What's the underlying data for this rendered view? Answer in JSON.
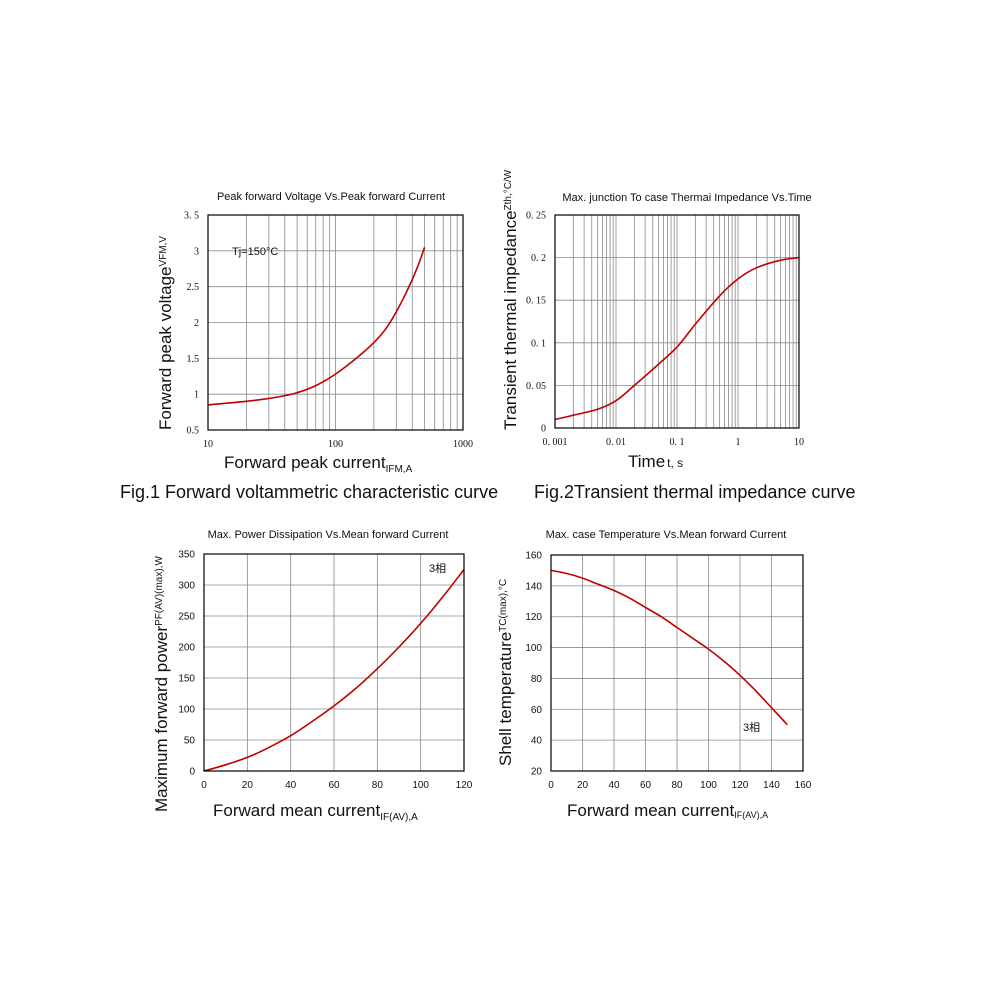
{
  "captions": {
    "fig1": "Fig.1 Forward voltammetric characteristic curve",
    "fig2": "Fig.2Transient thermal impedance curve"
  },
  "chart_data": [
    {
      "id": "c1",
      "type": "line",
      "title": "Peak forward Voltage Vs.Peak forward Current",
      "xlabel": "Forward peak current",
      "xlabel_sub": "IFM,A",
      "ylabel": "Forward peak voltage",
      "ylabel_sub": "VFM,V",
      "xscale": "log",
      "xlim": [
        10,
        1000
      ],
      "ylim": [
        0.5,
        3.5
      ],
      "xticks": [
        10,
        100,
        1000
      ],
      "xtick_labels": [
        "10",
        "100",
        "1000"
      ],
      "yticks": [
        0.5,
        1,
        1.5,
        2,
        2.5,
        3,
        3.5
      ],
      "ytick_labels": [
        "0.5",
        "1",
        "1.5",
        "2",
        "2.5",
        "3",
        "3. 5"
      ],
      "annotation": "Tj=150°C",
      "grid": true,
      "series": [
        {
          "x": [
            10,
            20,
            30,
            40,
            50,
            70,
            100,
            150,
            200,
            250,
            300,
            350,
            400,
            450,
            500
          ],
          "y": [
            0.85,
            0.9,
            0.94,
            0.98,
            1.02,
            1.12,
            1.28,
            1.52,
            1.72,
            1.92,
            2.15,
            2.38,
            2.6,
            2.82,
            3.05
          ]
        }
      ]
    },
    {
      "id": "c2",
      "type": "line",
      "title": "Max. junction To case Thermai Impedance Vs.Time",
      "xlabel": "Time",
      "xlabel_sub": "t, s",
      "ylabel": "Transient thermal impedance",
      "ylabel_sub": "Zth,°C/W",
      "xscale": "log",
      "xlim": [
        0.001,
        10
      ],
      "ylim": [
        0,
        0.25
      ],
      "xticks": [
        0.001,
        0.01,
        0.1,
        1,
        10
      ],
      "xtick_labels": [
        "0. 001",
        "0. 01",
        "0. 1",
        "1",
        "10"
      ],
      "yticks": [
        0,
        0.05,
        0.1,
        0.15,
        0.2,
        0.25
      ],
      "ytick_labels": [
        "0",
        "0. 05",
        "0. 1",
        "0. 15",
        "0. 2",
        "0. 25"
      ],
      "grid": true,
      "series": [
        {
          "x": [
            0.001,
            0.002,
            0.005,
            0.01,
            0.02,
            0.05,
            0.1,
            0.2,
            0.5,
            1,
            2,
            5,
            10
          ],
          "y": [
            0.01,
            0.015,
            0.022,
            0.032,
            0.05,
            0.075,
            0.095,
            0.122,
            0.155,
            0.175,
            0.188,
            0.197,
            0.2
          ]
        }
      ]
    },
    {
      "id": "c3",
      "type": "line",
      "title": "Max. Power Dissipation Vs.Mean forward Current",
      "xlabel": "Forward mean current",
      "xlabel_sub": "IF(AV),A",
      "ylabel": "Maximum forward power",
      "ylabel_sub": "PF(AV)(max),W",
      "xscale": "linear",
      "xlim": [
        0,
        120
      ],
      "ylim": [
        0,
        350
      ],
      "xticks": [
        0,
        20,
        40,
        60,
        80,
        100,
        120
      ],
      "xtick_labels": [
        "0",
        "20",
        "40",
        "60",
        "80",
        "100",
        "120"
      ],
      "yticks": [
        0,
        50,
        100,
        150,
        200,
        250,
        300,
        350
      ],
      "ytick_labels": [
        "0",
        "50",
        "100",
        "150",
        "200",
        "250",
        "300",
        "350"
      ],
      "annotation": "3相",
      "grid": true,
      "series": [
        {
          "x": [
            0,
            10,
            20,
            30,
            40,
            50,
            60,
            70,
            80,
            90,
            100,
            110,
            120
          ],
          "y": [
            0,
            10,
            22,
            38,
            57,
            80,
            105,
            133,
            165,
            200,
            238,
            280,
            325
          ]
        }
      ]
    },
    {
      "id": "c4",
      "type": "line",
      "title": "Max. case Temperature Vs.Mean forward Current",
      "xlabel": "Forward mean current",
      "xlabel_sub": "IF(AV),A",
      "ylabel": "Shell temperature",
      "ylabel_sub": "TC(max),°C",
      "xscale": "linear",
      "xlim": [
        0,
        160
      ],
      "ylim": [
        20,
        160
      ],
      "xticks": [
        0,
        20,
        40,
        60,
        80,
        100,
        120,
        140,
        160
      ],
      "xtick_labels": [
        "0",
        "20",
        "40",
        "60",
        "80",
        "100",
        "120",
        "140",
        "160"
      ],
      "yticks": [
        20,
        40,
        60,
        80,
        100,
        120,
        140,
        160
      ],
      "ytick_labels": [
        "20",
        "40",
        "60",
        "80",
        "100",
        "120",
        "140",
        "160"
      ],
      "annotation": "3相",
      "grid": true,
      "series": [
        {
          "x": [
            0,
            10,
            20,
            30,
            40,
            50,
            60,
            70,
            80,
            90,
            100,
            110,
            120,
            130,
            140,
            150
          ],
          "y": [
            150,
            148,
            145,
            141,
            137,
            132,
            126,
            120,
            113,
            106,
            99,
            91,
            82,
            72,
            61,
            50
          ]
        }
      ]
    }
  ]
}
